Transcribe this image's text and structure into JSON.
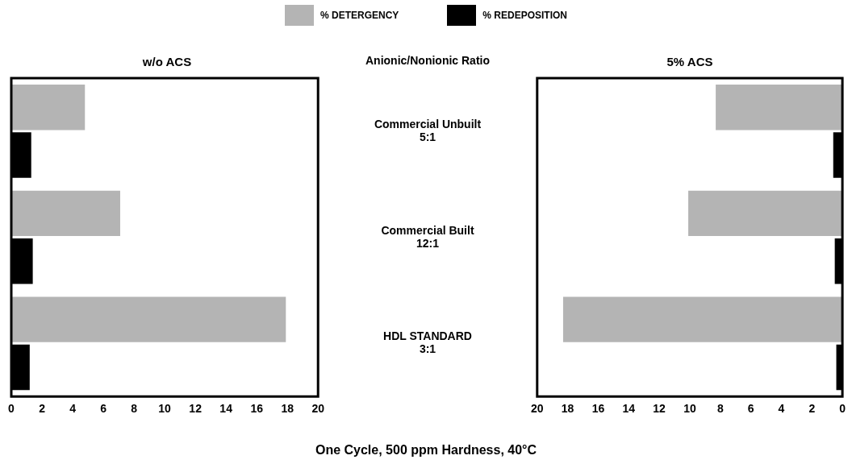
{
  "chart_data": [
    {
      "type": "bar",
      "orientation": "horizontal",
      "title": "w/o ACS",
      "ylabel": "Anionic/Nonionic Ratio",
      "categories": [
        "Commercial Unbuilt\n5:1",
        "Commercial Built\n12:1",
        "HDL STANDARD\n3:1"
      ],
      "series": [
        {
          "name": "% DETERGENCY",
          "color": "#b4b4b4",
          "values": [
            4.8,
            7.1,
            17.9
          ]
        },
        {
          "name": "% REDEPOSITION",
          "color": "#000000",
          "values": [
            1.3,
            1.4,
            1.2
          ]
        }
      ],
      "xlim": [
        0,
        20
      ],
      "xticks": [
        0,
        2,
        4,
        6,
        8,
        10,
        12,
        14,
        16,
        18,
        20
      ],
      "grid": false,
      "legend": "top",
      "annotations": [
        "One Cycle, 500 ppm Hardness, 40°C"
      ]
    },
    {
      "type": "bar",
      "orientation": "horizontal",
      "title": "5% ACS",
      "categories": [
        null,
        null,
        null
      ],
      "series": [
        {
          "color": "#b4b4b4",
          "values": [
            8.3,
            10.1,
            18.3
          ]
        },
        {
          "color": "#000000",
          "values": [
            0.6,
            0.5,
            0.4
          ]
        }
      ],
      "xlim": [
        20,
        0
      ],
      "xticks": [
        20,
        18,
        16,
        14,
        12,
        10,
        8,
        6,
        4,
        2,
        0
      ],
      "grid": false,
      "tick_labels": "x"
    }
  ]
}
